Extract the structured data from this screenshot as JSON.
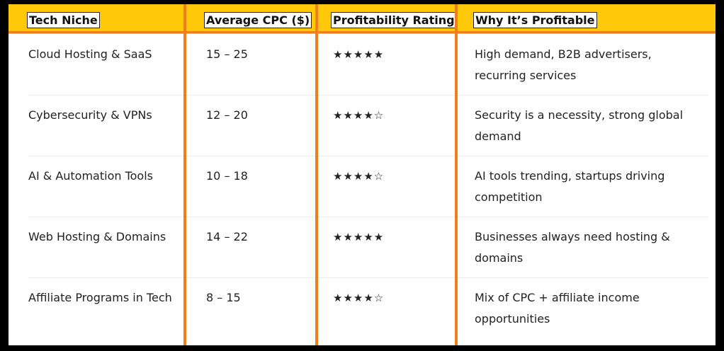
{
  "table": {
    "headers": [
      "Tech Niche",
      "Average CPC ($)",
      "Profitability Rating",
      "Why It’s Profitable"
    ],
    "rows": [
      {
        "niche": "Cloud Hosting & SaaS",
        "cpc": "15 – 25",
        "rating": "★★★★★",
        "why": "High demand, B2B advertisers, recurring services"
      },
      {
        "niche": "Cybersecurity & VPNs",
        "cpc": "12 – 20",
        "rating": "★★★★☆",
        "why": "Security is a necessity, strong global demand"
      },
      {
        "niche": "AI & Automation Tools",
        "cpc": "10 – 18",
        "rating": "★★★★☆",
        "why": "AI tools trending, startups driving competition"
      },
      {
        "niche": "Web Hosting & Domains",
        "cpc": "14 – 22",
        "rating": "★★★★★",
        "why": "Businesses always need hosting & domains"
      },
      {
        "niche": "Affiliate Programs in Tech",
        "cpc": "8 – 15",
        "rating": "★★★★☆",
        "why": "Mix of CPC + affiliate income opportunities"
      }
    ]
  },
  "colors": {
    "header_bg": "#ffc90a",
    "highlight": "#f07f1a",
    "frame": "#000000"
  }
}
